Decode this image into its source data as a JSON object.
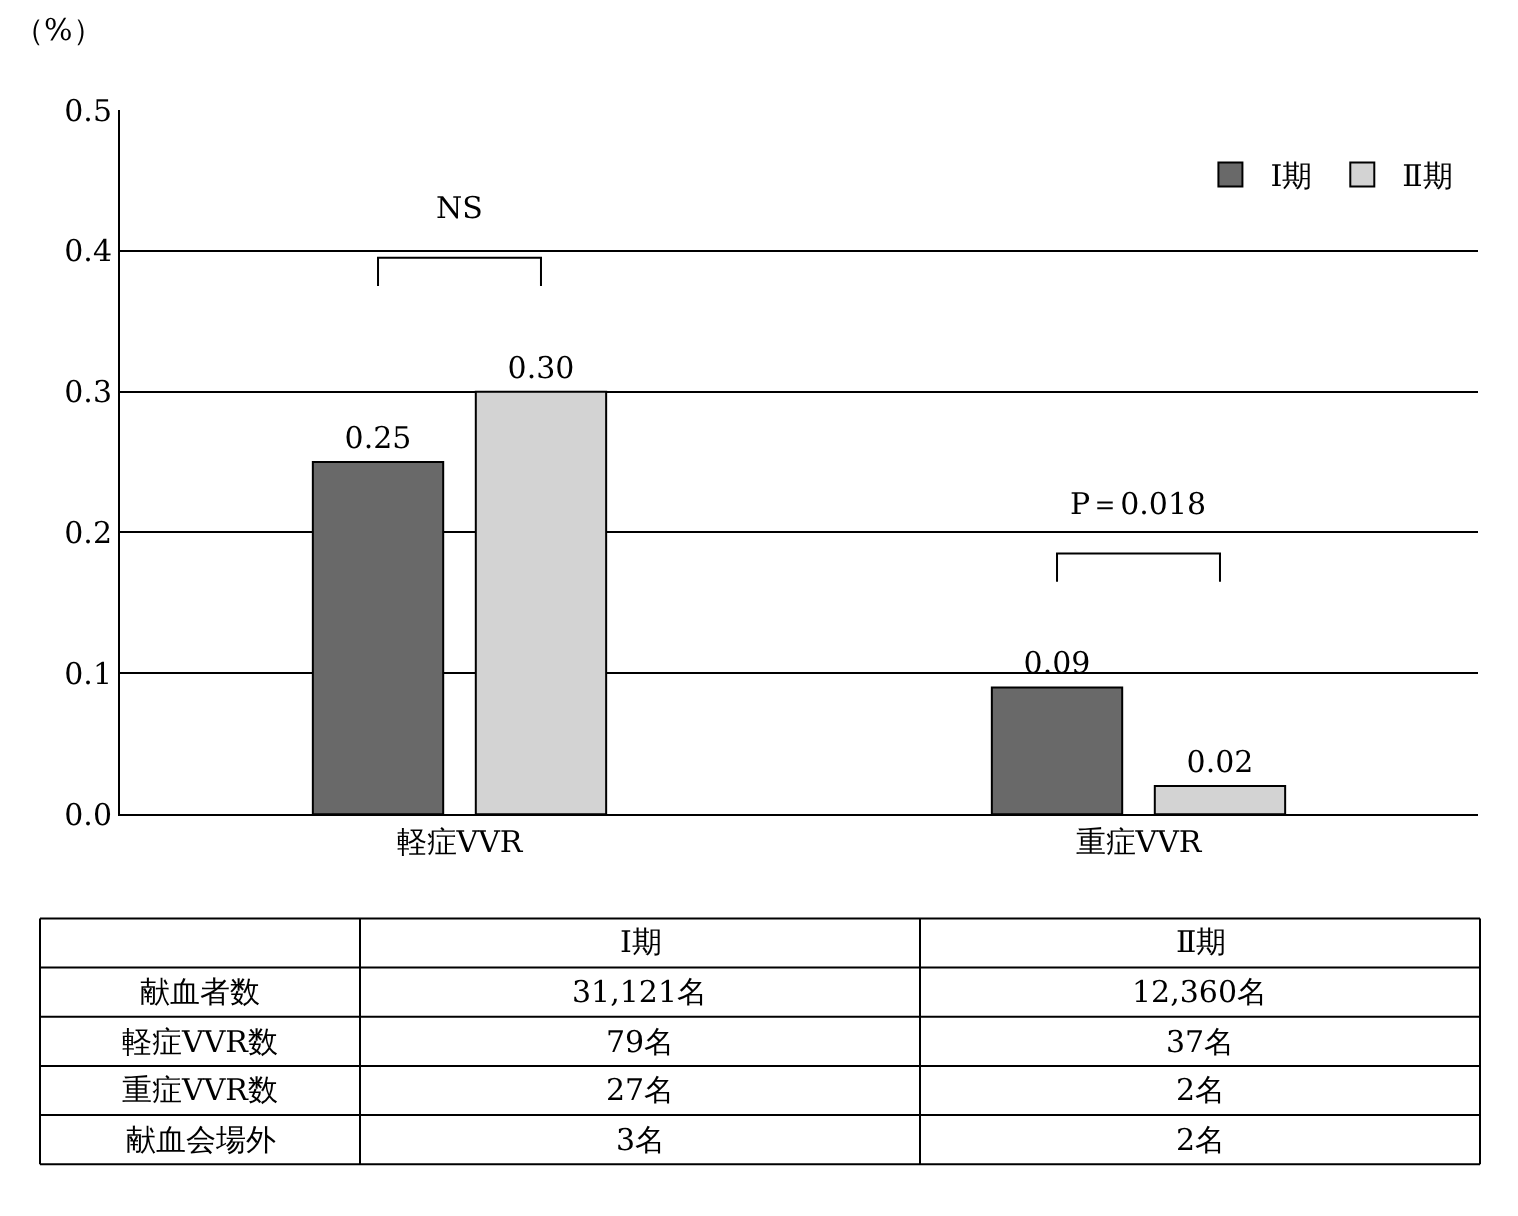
{
  "chart_data": [
    {
      "type": "bar",
      "ylabel": "（%）",
      "categories": [
        "軽症VVR",
        "重症VVR"
      ],
      "series": [
        {
          "name": "Ⅰ期",
          "color": "#696969",
          "values": [
            0.25,
            0.09
          ]
        },
        {
          "name": "Ⅱ期",
          "color": "#d3d3d3",
          "values": [
            0.3,
            0.02
          ]
        }
      ],
      "ylim": [
        0,
        0.5
      ],
      "yticks": [
        {
          "value": 0,
          "label": "0.0"
        },
        0.1,
        0.2,
        0.3,
        0.4,
        0.5
      ],
      "value_labels": [
        [
          "0.25",
          "0.09"
        ],
        [
          "0.30",
          "0.02"
        ]
      ],
      "annotations": [
        "NS",
        "P＝0.018"
      ],
      "grid": "y",
      "legend": "top right"
    },
    {
      "type": "other",
      "categories": [
        "Ⅰ期",
        "Ⅱ期"
      ],
      "y_categories": [
        "献血者数",
        "軽症VVR数",
        "重症VVR数",
        "献血会場外"
      ],
      "cell_labels": [
        [
          "31,121名",
          "12,360名"
        ],
        [
          "79名",
          "37名"
        ],
        [
          "27名",
          "2名"
        ],
        [
          "3名",
          "2名"
        ]
      ]
    }
  ]
}
